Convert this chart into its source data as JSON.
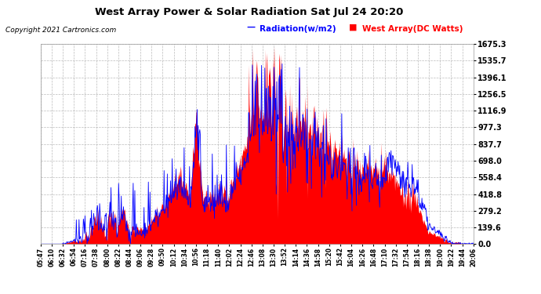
{
  "title": "West Array Power & Solar Radiation Sat Jul 24 20:20",
  "copyright": "Copyright 2021 Cartronics.com",
  "legend_radiation": "Radiation(w/m2)",
  "legend_west": "West Array(DC Watts)",
  "yticks": [
    0.0,
    139.6,
    279.2,
    418.8,
    558.4,
    698.0,
    837.7,
    977.3,
    1116.9,
    1256.5,
    1396.1,
    1535.7,
    1675.3
  ],
  "ylim": [
    0,
    1675.3
  ],
  "bg_color": "#ffffff",
  "plot_bg": "#ffffff",
  "grid_color": "#aaaaaa",
  "radiation_color": "#0000ff",
  "west_color": "#ff0000",
  "title_color": "#000000",
  "copyright_color": "#000000",
  "xtick_labels": [
    "05:47",
    "06:10",
    "06:32",
    "06:54",
    "07:16",
    "07:38",
    "08:00",
    "08:22",
    "08:44",
    "09:06",
    "09:28",
    "09:50",
    "10:12",
    "10:34",
    "10:56",
    "11:18",
    "11:40",
    "12:02",
    "12:24",
    "12:46",
    "13:08",
    "13:30",
    "13:52",
    "14:14",
    "14:36",
    "14:58",
    "15:20",
    "15:42",
    "16:04",
    "16:26",
    "16:48",
    "17:10",
    "17:32",
    "17:54",
    "18:16",
    "18:38",
    "19:00",
    "19:22",
    "19:44",
    "20:06"
  ]
}
